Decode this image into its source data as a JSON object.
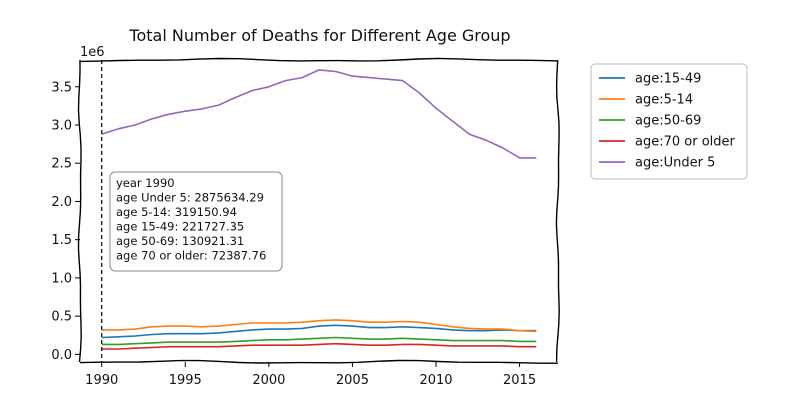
{
  "chart_data": {
    "type": "line",
    "title": "Total Number of Deaths for Different Age Group",
    "xlabel": "",
    "ylabel": "",
    "y_scale_label": "1e6",
    "x": [
      1990,
      1991,
      1992,
      1993,
      1994,
      1995,
      1996,
      1997,
      1998,
      1999,
      2000,
      2001,
      2002,
      2003,
      2004,
      2005,
      2006,
      2007,
      2008,
      2009,
      2010,
      2011,
      2012,
      2013,
      2014,
      2015,
      2016
    ],
    "xlim": [
      1988.7,
      2017.3
    ],
    "ylim": [
      -0.1,
      3.85
    ],
    "x_ticks": [
      1990,
      1995,
      2000,
      2005,
      2010,
      2015
    ],
    "y_ticks": [
      0.0,
      0.5,
      1.0,
      1.5,
      2.0,
      2.5,
      3.0,
      3.5
    ],
    "y_tick_labels": [
      "0.0",
      "0.5",
      "1.0",
      "1.5",
      "2.0",
      "2.5",
      "3.0",
      "3.5"
    ],
    "grid": false,
    "legend_position": "outside-right",
    "series": [
      {
        "name": "age:15-49",
        "color": "#1f77b4",
        "values": [
          0.22,
          0.23,
          0.24,
          0.26,
          0.27,
          0.27,
          0.27,
          0.28,
          0.3,
          0.32,
          0.33,
          0.33,
          0.34,
          0.37,
          0.38,
          0.37,
          0.35,
          0.35,
          0.36,
          0.35,
          0.34,
          0.32,
          0.31,
          0.31,
          0.32,
          0.31,
          0.31
        ]
      },
      {
        "name": "age:5-14",
        "color": "#ff7f0e",
        "values": [
          0.32,
          0.32,
          0.33,
          0.36,
          0.37,
          0.37,
          0.36,
          0.37,
          0.39,
          0.41,
          0.41,
          0.41,
          0.42,
          0.44,
          0.45,
          0.44,
          0.42,
          0.42,
          0.43,
          0.42,
          0.39,
          0.36,
          0.34,
          0.33,
          0.33,
          0.31,
          0.3
        ]
      },
      {
        "name": "age:50-69",
        "color": "#2ca02c",
        "values": [
          0.13,
          0.13,
          0.14,
          0.15,
          0.16,
          0.16,
          0.16,
          0.16,
          0.17,
          0.18,
          0.19,
          0.19,
          0.2,
          0.21,
          0.22,
          0.21,
          0.2,
          0.2,
          0.21,
          0.2,
          0.19,
          0.18,
          0.18,
          0.18,
          0.18,
          0.17,
          0.17
        ]
      },
      {
        "name": "age:70 or older",
        "color": "#d62728",
        "values": [
          0.07,
          0.07,
          0.08,
          0.09,
          0.1,
          0.1,
          0.1,
          0.1,
          0.11,
          0.12,
          0.12,
          0.12,
          0.12,
          0.13,
          0.14,
          0.13,
          0.12,
          0.12,
          0.13,
          0.13,
          0.12,
          0.11,
          0.11,
          0.11,
          0.11,
          0.1,
          0.1
        ]
      },
      {
        "name": "age:Under 5",
        "color": "#9467bd",
        "values": [
          2.88,
          2.95,
          3.0,
          3.08,
          3.14,
          3.18,
          3.21,
          3.26,
          3.36,
          3.45,
          3.5,
          3.58,
          3.62,
          3.72,
          3.7,
          3.64,
          3.62,
          3.6,
          3.58,
          3.42,
          3.22,
          3.05,
          2.88,
          2.8,
          2.7,
          2.57,
          2.57
        ]
      }
    ],
    "annotation": {
      "marker_x": 1990,
      "lines": [
        "year 1990",
        "age Under 5: 2875634.29",
        "age 5-14: 319150.94",
        "age 15-49: 221727.35",
        "age 50-69: 130921.31",
        "age 70 or older: 72387.76"
      ]
    }
  }
}
